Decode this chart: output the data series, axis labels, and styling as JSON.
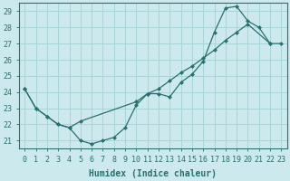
{
  "xlabel": "Humidex (Indice chaleur)",
  "bg_color": "#cceaed",
  "grid_color": "#aad4d8",
  "line_color": "#2a7070",
  "xlim": [
    -0.5,
    23.5
  ],
  "ylim": [
    20.5,
    29.5
  ],
  "xticks": [
    0,
    1,
    2,
    3,
    4,
    5,
    6,
    7,
    8,
    9,
    10,
    11,
    12,
    13,
    14,
    15,
    16,
    17,
    18,
    19,
    20,
    21,
    22,
    23
  ],
  "yticks": [
    21,
    22,
    23,
    24,
    25,
    26,
    27,
    28,
    29
  ],
  "series1_x": [
    0,
    1,
    2,
    3,
    4,
    5,
    6,
    7,
    8,
    9,
    10,
    11,
    12,
    13,
    14,
    15,
    16,
    17,
    18,
    19,
    20,
    21,
    22
  ],
  "series1_y": [
    24.2,
    23.0,
    22.5,
    22.0,
    21.8,
    21.0,
    20.8,
    21.0,
    21.2,
    21.8,
    23.2,
    23.9,
    23.9,
    23.7,
    24.6,
    25.1,
    25.9,
    27.7,
    29.2,
    29.3,
    28.4,
    28.0,
    27.0
  ],
  "series2_x": [
    0,
    1,
    2,
    3,
    4,
    5,
    10,
    11,
    12,
    13,
    14,
    15,
    16,
    17,
    18,
    19,
    20,
    22,
    23
  ],
  "series2_y": [
    24.2,
    23.0,
    22.5,
    22.0,
    21.8,
    22.2,
    23.4,
    23.9,
    24.2,
    24.7,
    25.2,
    25.6,
    26.1,
    26.6,
    27.2,
    27.7,
    28.2,
    27.0,
    27.0
  ],
  "marker": "D",
  "markersize": 2.0,
  "linewidth": 0.9,
  "xlabel_fontsize": 7,
  "tick_fontsize": 6
}
